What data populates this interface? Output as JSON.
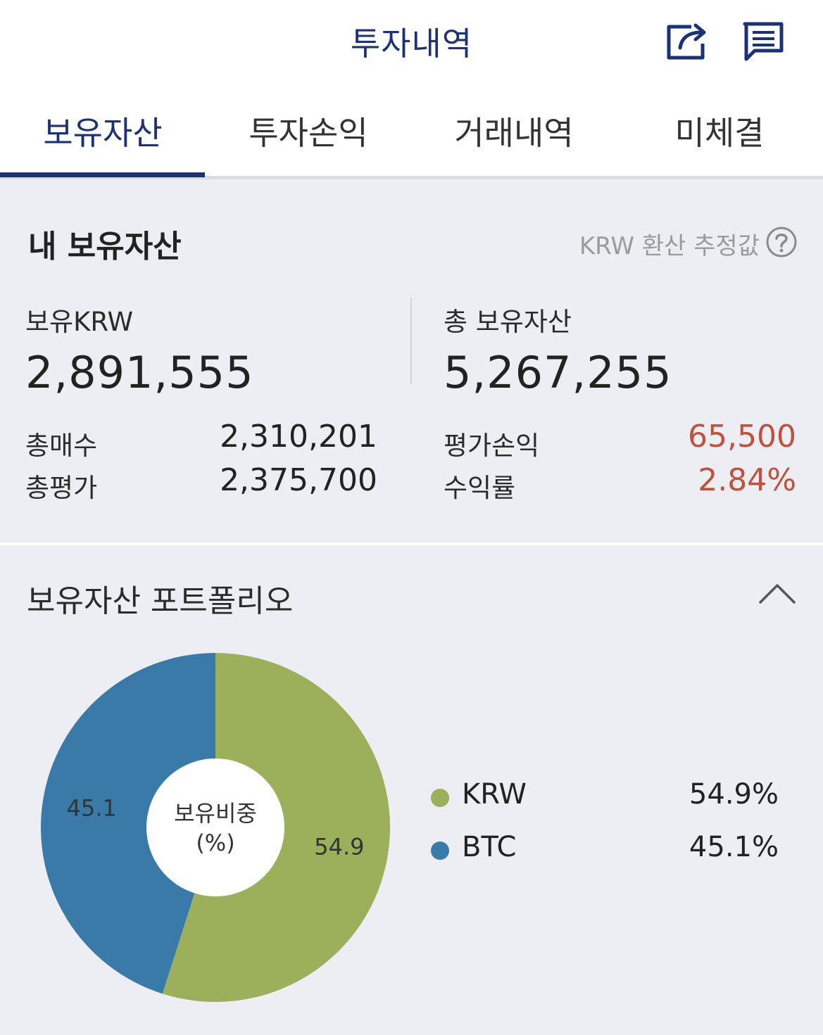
{
  "header": {
    "title": "투자내역",
    "share_icon": "share-icon",
    "chat_icon": "chat-icon"
  },
  "tabs": [
    {
      "label": "보유자산",
      "active": true
    },
    {
      "label": "투자손익",
      "active": false
    },
    {
      "label": "거래내역",
      "active": false
    },
    {
      "label": "미체결",
      "active": false
    }
  ],
  "holdings": {
    "title": "내 보유자산",
    "note": "KRW 환산 추정값",
    "krw_label": "보유KRW",
    "krw_value": "2,891,555",
    "total_label": "총 보유자산",
    "total_value": "5,267,255",
    "rows_left": [
      {
        "label": "총매수",
        "value": "2,310,201"
      },
      {
        "label": "총평가",
        "value": "2,375,700"
      }
    ],
    "rows_right": [
      {
        "label": "평가손익",
        "value": "65,500"
      },
      {
        "label": "수익률",
        "value": "2.84%"
      }
    ],
    "profit_color": "#c0513c"
  },
  "portfolio": {
    "title": "보유자산 포트폴리오",
    "center_label_line1": "보유비중",
    "center_label_line2": "(%)",
    "legend": [
      {
        "name": "KRW",
        "pct": "54.9%",
        "color": "#9caf5a"
      },
      {
        "name": "BTC",
        "pct": "45.1%",
        "color": "#3a7aa9"
      }
    ]
  },
  "chart_data": {
    "type": "pie",
    "categories": [
      "KRW",
      "BTC"
    ],
    "values": [
      54.9,
      45.1
    ],
    "colors": [
      "#9caf5a",
      "#3a7aa9"
    ]
  }
}
